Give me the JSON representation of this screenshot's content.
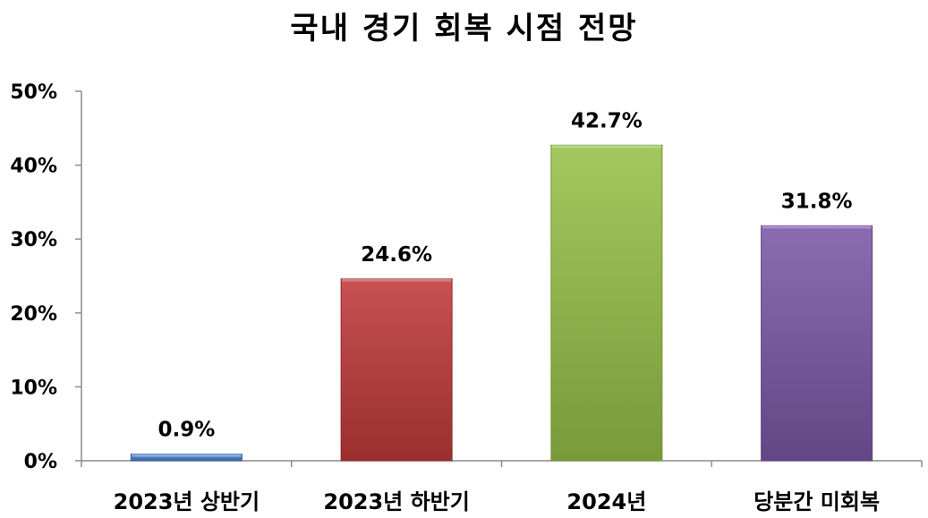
{
  "chart_data": {
    "type": "bar",
    "title": "국내 경기 회복 시점 전망",
    "xlabel": "",
    "ylabel": "",
    "categories": [
      "2023년 상반기",
      "2023년 하반기",
      "2024년",
      "당분간 미회복"
    ],
    "values": [
      0.9,
      24.6,
      42.7,
      31.8
    ],
    "value_labels": [
      "0.9%",
      "24.6%",
      "42.7%",
      "31.8%"
    ],
    "ylim": [
      0,
      50
    ],
    "y_ticks": [
      0,
      10,
      20,
      30,
      40,
      50
    ],
    "y_tick_labels": [
      "0%",
      "10%",
      "20%",
      "30%",
      "40%",
      "50%"
    ],
    "bar_colors": [
      "#4a80cf",
      "#c0393a",
      "#96c148",
      "#7b58a6"
    ],
    "grid": false,
    "legend": "none"
  }
}
